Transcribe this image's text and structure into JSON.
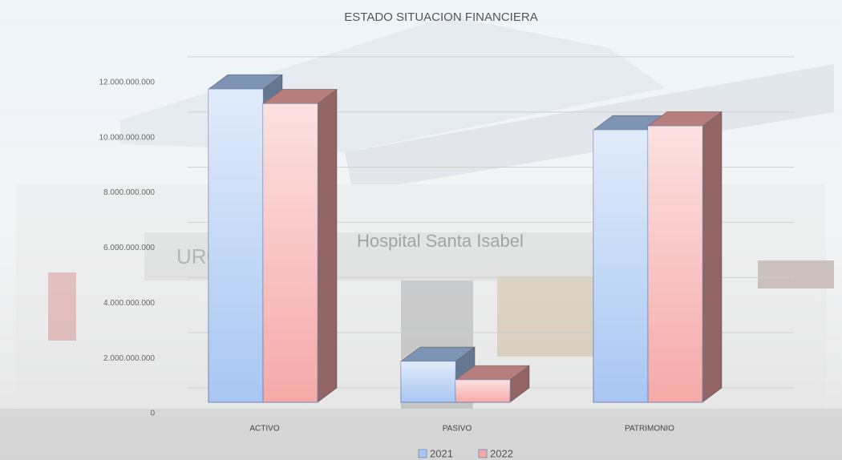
{
  "chart_data": {
    "type": "bar3d",
    "title": "ESTADO SITUACION FINANCIERA",
    "background_sign": "Hospital Santa Isabel",
    "categories": [
      "ACTIVO",
      "PASIVO",
      "PATRIMONIO"
    ],
    "series": [
      {
        "name": "2021",
        "color": "#a9c6f2",
        "values": [
          11350000000,
          1480000000,
          9870000000
        ]
      },
      {
        "name": "2022",
        "color": "#f6a9a9",
        "values": [
          10820000000,
          810000000,
          10010000000
        ]
      }
    ],
    "ylim": [
      0,
      14000000000
    ],
    "yticks": [
      0,
      {
        "value": 2000000000,
        "label": "2.000.000.000"
      },
      {
        "value": 4000000000,
        "label": "4.000.000.000"
      },
      {
        "value": 6000000000,
        "label": "6.000.000.000"
      },
      {
        "value": 8000000000,
        "label": "8.000.000.000"
      },
      {
        "value": 10000000000,
        "label": "10.000.000.000"
      },
      {
        "value": 12000000000,
        "label": "12.000.000.000"
      }
    ],
    "grid": true,
    "legend": "bottom"
  }
}
